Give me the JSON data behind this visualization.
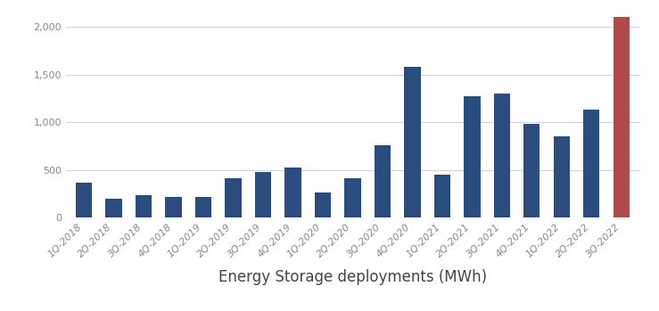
{
  "categories": [
    "1Q-2018",
    "2Q-2018",
    "3Q-2018",
    "4Q-2018",
    "1Q-2019",
    "2Q-2019",
    "3Q-2019",
    "4Q-2019",
    "1Q-2020",
    "2Q-2020",
    "3Q-2020",
    "4Q-2020",
    "1Q-2021",
    "2Q-2021",
    "3Q-2021",
    "4Q-2021",
    "1Q-2022",
    "2Q-2022",
    "3Q-2022"
  ],
  "values": [
    370,
    200,
    240,
    215,
    220,
    415,
    475,
    530,
    260,
    415,
    760,
    1580,
    450,
    1270,
    1300,
    980,
    850,
    1130,
    2100
  ],
  "bar_colors": [
    "#2b4c7e",
    "#2b4c7e",
    "#2b4c7e",
    "#2b4c7e",
    "#2b4c7e",
    "#2b4c7e",
    "#2b4c7e",
    "#2b4c7e",
    "#2b4c7e",
    "#2b4c7e",
    "#2b4c7e",
    "#2b4c7e",
    "#2b4c7e",
    "#2b4c7e",
    "#2b4c7e",
    "#2b4c7e",
    "#2b4c7e",
    "#2b4c7e",
    "#b04a4a"
  ],
  "xlabel": "Energy Storage deployments (MWh)",
  "ylim": [
    0,
    2150
  ],
  "yticks": [
    0,
    500,
    1000,
    1500,
    2000
  ],
  "ytick_labels": [
    "0",
    "500",
    "1,000",
    "1,500",
    "2,000"
  ],
  "background_color": "#ffffff",
  "grid_color": "#d0d0d0",
  "xlabel_fontsize": 12,
  "tick_fontsize": 8,
  "bar_width": 0.55
}
